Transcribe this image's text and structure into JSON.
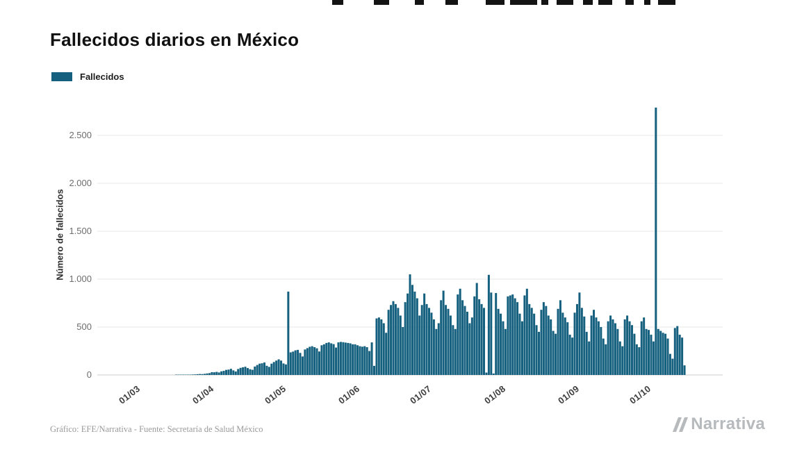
{
  "page": {
    "title": "Fallecidos diarios en México",
    "footer_credit": "Gráfico: EFE/Narrativa - Fuente: Secretaría de Salud México",
    "brand": "Narrativa"
  },
  "legend": {
    "label": "Fallecidos"
  },
  "chart_data": {
    "type": "bar",
    "title": "Fallecidos diarios en México",
    "series_name": "Fallecidos",
    "ylabel": "Número de fallecidos",
    "xlabel": "",
    "bar_color": "#15607e",
    "grid": true,
    "legend_position": "top-left",
    "ylim": [
      0,
      2900
    ],
    "start_date": "2020-03-01",
    "date_step_days": 1,
    "y_ticks": [
      {
        "label": "0",
        "value": 0
      },
      {
        "label": "500",
        "value": 500
      },
      {
        "label": "1.000",
        "value": 1000
      },
      {
        "label": "1.500",
        "value": 1500
      },
      {
        "label": "2.000",
        "value": 2000
      },
      {
        "label": "2.500",
        "value": 2500
      }
    ],
    "x_ticks": [
      {
        "label": "01/03",
        "index": 0
      },
      {
        "label": "01/04",
        "index": 31
      },
      {
        "label": "01/05",
        "index": 61
      },
      {
        "label": "01/06",
        "index": 92
      },
      {
        "label": "01/07",
        "index": 122
      },
      {
        "label": "01/08",
        "index": 153
      },
      {
        "label": "01/09",
        "index": 184
      },
      {
        "label": "01/10",
        "index": 214
      }
    ],
    "values": [
      0,
      0,
      0,
      0,
      0,
      0,
      0,
      0,
      0,
      0,
      0,
      0,
      0,
      0,
      0,
      0,
      0,
      1,
      1,
      2,
      2,
      2,
      3,
      4,
      5,
      6,
      8,
      10,
      9,
      12,
      16,
      19,
      29,
      28,
      32,
      26,
      38,
      43,
      53,
      56,
      64,
      48,
      36,
      62,
      74,
      80,
      86,
      72,
      60,
      54,
      88,
      104,
      118,
      122,
      130,
      96,
      84,
      118,
      135,
      150,
      163,
      150,
      120,
      110,
      870,
      236,
      244,
      257,
      262,
      230,
      193,
      266,
      280,
      294,
      300,
      290,
      278,
      245,
      310,
      320,
      334,
      340,
      330,
      322,
      286,
      340,
      345,
      342,
      338,
      334,
      330,
      320,
      320,
      310,
      300,
      295,
      300,
      290,
      250,
      340,
      95,
      590,
      600,
      580,
      540,
      440,
      680,
      730,
      770,
      740,
      700,
      620,
      500,
      760,
      850,
      1050,
      940,
      870,
      800,
      620,
      730,
      850,
      740,
      700,
      650,
      580,
      480,
      540,
      780,
      880,
      730,
      690,
      620,
      520,
      480,
      840,
      900,
      780,
      720,
      660,
      540,
      600,
      820,
      960,
      790,
      740,
      700,
      25,
      1045,
      860,
      15,
      855,
      690,
      640,
      560,
      480,
      820,
      830,
      840,
      800,
      760,
      640,
      560,
      830,
      900,
      740,
      700,
      640,
      520,
      450,
      680,
      760,
      720,
      620,
      580,
      460,
      430,
      690,
      780,
      650,
      600,
      550,
      420,
      390,
      650,
      740,
      860,
      700,
      610,
      450,
      350,
      620,
      680,
      600,
      560,
      500,
      380,
      320,
      560,
      620,
      580,
      540,
      480,
      350,
      300,
      580,
      620,
      560,
      520,
      430,
      320,
      290,
      560,
      600,
      480,
      470,
      420,
      350,
      2790,
      480,
      460,
      440,
      430,
      380,
      220,
      170,
      490,
      510,
      420,
      390,
      100
    ]
  }
}
